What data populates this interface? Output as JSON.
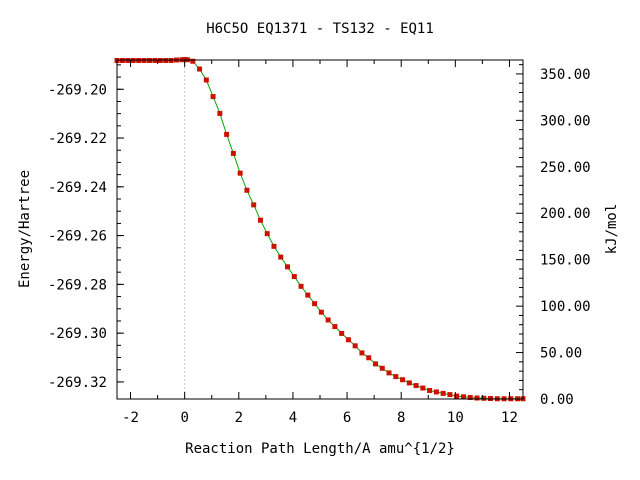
{
  "chart_data": {
    "type": "line",
    "title": "H6C5O   EQ1371 - TS132 - EQ11",
    "xlabel": "Reaction Path Length/A amu^{1/2}",
    "ylabel": "Energy/Hartree",
    "y2label": "kJ/mol",
    "xlim": [
      -2.5,
      12.5
    ],
    "ylim": [
      -269.327,
      -269.188
    ],
    "y2lim": [
      0.0,
      365.0
    ],
    "x_ticks": [
      "-2",
      "0",
      "2",
      "4",
      "6",
      "8",
      "10",
      "12"
    ],
    "y_ticks": [
      "-269.20",
      "-269.22",
      "-269.24",
      "-269.26",
      "-269.28",
      "-269.30",
      "-269.32"
    ],
    "y2_ticks": [
      "0.00",
      "50.00",
      "100.00",
      "150.00",
      "200.00",
      "250.00",
      "300.00",
      "350.00"
    ],
    "ts_marker_x": 0,
    "grid": false,
    "legend": "none",
    "colors": {
      "line": "#00aa00",
      "points": "#cc1100",
      "ts_line": "#888888",
      "frame": "#000000"
    },
    "series": [
      {
        "x": [
          -2.5,
          -2.3,
          -2.1,
          -1.9,
          -1.7,
          -1.5,
          -1.3,
          -1.1,
          -0.9,
          -0.7,
          -0.5,
          -0.3,
          -0.1,
          0.0,
          0.1,
          0.3,
          0.55,
          0.8,
          1.05,
          1.3,
          1.55,
          1.8,
          2.05,
          2.3,
          2.55,
          2.8,
          3.05,
          3.3,
          3.55,
          3.8,
          4.05,
          4.3,
          4.55,
          4.8,
          5.05,
          5.3,
          5.55,
          5.8,
          6.05,
          6.3,
          6.55,
          6.8,
          7.05,
          7.3,
          7.55,
          7.8,
          8.05,
          8.3,
          8.55,
          8.8,
          9.05,
          9.3,
          9.55,
          9.8,
          10.05,
          10.3,
          10.55,
          10.8,
          11.05,
          11.3,
          11.55,
          11.8,
          12.05,
          12.3,
          12.5
        ],
        "y": [
          -269.1882,
          -269.1882,
          -269.1882,
          -269.1882,
          -269.1882,
          -269.1882,
          -269.1882,
          -269.1882,
          -269.1882,
          -269.1882,
          -269.1882,
          -269.188,
          -269.1879,
          -269.1878,
          -269.1879,
          -269.1885,
          -269.1917,
          -269.1962,
          -269.203,
          -269.2099,
          -269.2185,
          -269.2263,
          -269.2344,
          -269.2414,
          -269.2474,
          -269.2537,
          -269.2592,
          -269.2644,
          -269.2688,
          -269.2728,
          -269.2768,
          -269.2808,
          -269.2844,
          -269.2879,
          -269.2914,
          -269.2946,
          -269.2973,
          -269.3001,
          -269.3027,
          -269.3052,
          -269.3081,
          -269.3101,
          -269.3126,
          -269.3144,
          -269.3163,
          -269.3178,
          -269.3191,
          -269.3204,
          -269.3215,
          -269.3225,
          -269.3235,
          -269.3241,
          -269.3247,
          -269.3252,
          -269.3258,
          -269.3261,
          -269.3264,
          -269.3266,
          -269.3267,
          -269.3268,
          -269.3269,
          -269.3269,
          -269.3269,
          -269.3269,
          -269.3269
        ]
      }
    ]
  }
}
